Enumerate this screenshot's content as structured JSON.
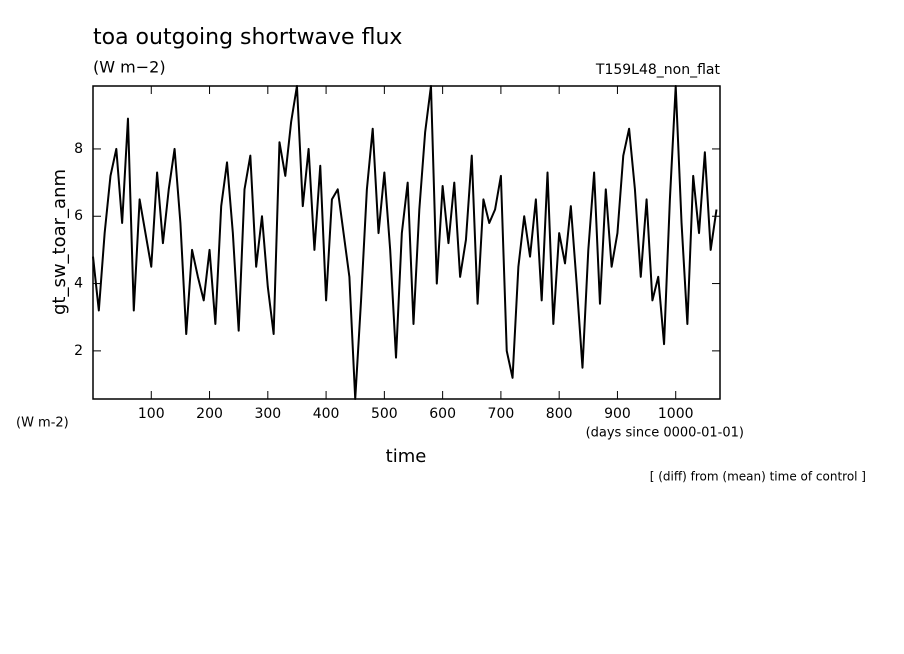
{
  "chart_data": {
    "type": "line",
    "title": "toa outgoing shortwave flux",
    "units": "(W m−2)",
    "run_label": "T159L48_non_flat",
    "y_label": "gt_sw_toar_anm",
    "y_units": "(W m-2)",
    "x_label": "time",
    "x_units": "(days since 0000-01-01)",
    "note": "[ (diff) from (mean) time of control ]",
    "xlim": [
      0,
      1076
    ],
    "ylim": [
      0.57,
      9.87
    ],
    "xticks": [
      100,
      200,
      300,
      400,
      500,
      600,
      700,
      800,
      900,
      1000
    ],
    "yticks": [
      2,
      4,
      6,
      8
    ],
    "color": "#000000",
    "x": [
      0,
      10,
      20,
      30,
      40,
      50,
      60,
      70,
      80,
      90,
      100,
      110,
      120,
      130,
      140,
      150,
      160,
      170,
      180,
      190,
      200,
      210,
      220,
      230,
      240,
      250,
      260,
      270,
      280,
      290,
      300,
      310,
      320,
      330,
      340,
      350,
      360,
      370,
      380,
      390,
      400,
      410,
      420,
      430,
      440,
      450,
      460,
      470,
      480,
      490,
      500,
      510,
      520,
      530,
      540,
      550,
      560,
      570,
      580,
      590,
      600,
      610,
      620,
      630,
      640,
      650,
      660,
      670,
      680,
      690,
      700,
      710,
      720,
      730,
      740,
      750,
      760,
      770,
      780,
      790,
      800,
      810,
      820,
      830,
      840,
      850,
      860,
      870,
      880,
      890,
      900,
      910,
      920,
      930,
      940,
      950,
      960,
      970,
      980,
      990,
      1000,
      1010,
      1020,
      1030,
      1040,
      1050,
      1060,
      1070
    ],
    "values": [
      4.8,
      3.2,
      5.5,
      7.2,
      8.0,
      5.8,
      8.9,
      3.2,
      6.5,
      5.5,
      4.5,
      7.3,
      5.2,
      6.8,
      8.0,
      5.8,
      2.5,
      5.0,
      4.2,
      3.5,
      5.0,
      2.8,
      6.3,
      7.6,
      5.5,
      2.6,
      6.8,
      7.8,
      4.5,
      6.0,
      3.9,
      2.5,
      8.2,
      7.2,
      8.8,
      9.87,
      6.3,
      8.0,
      5.0,
      7.5,
      3.5,
      6.5,
      6.8,
      5.5,
      4.2,
      0.57,
      3.5,
      6.8,
      8.6,
      5.5,
      7.3,
      5.0,
      1.8,
      5.5,
      7.0,
      2.8,
      6.2,
      8.5,
      9.87,
      4.0,
      6.9,
      5.2,
      7.0,
      4.2,
      5.3,
      7.8,
      3.4,
      6.5,
      5.8,
      6.2,
      7.2,
      2.0,
      1.2,
      4.5,
      6.0,
      4.8,
      6.5,
      3.5,
      7.3,
      2.8,
      5.5,
      4.6,
      6.3,
      4.0,
      1.5,
      5.0,
      7.3,
      3.4,
      6.8,
      4.5,
      5.5,
      7.8,
      8.6,
      6.8,
      4.2,
      6.5,
      3.5,
      4.2,
      2.2,
      6.5,
      9.87,
      5.8,
      2.8,
      7.2,
      5.5,
      7.9,
      5.0,
      6.2
    ]
  }
}
